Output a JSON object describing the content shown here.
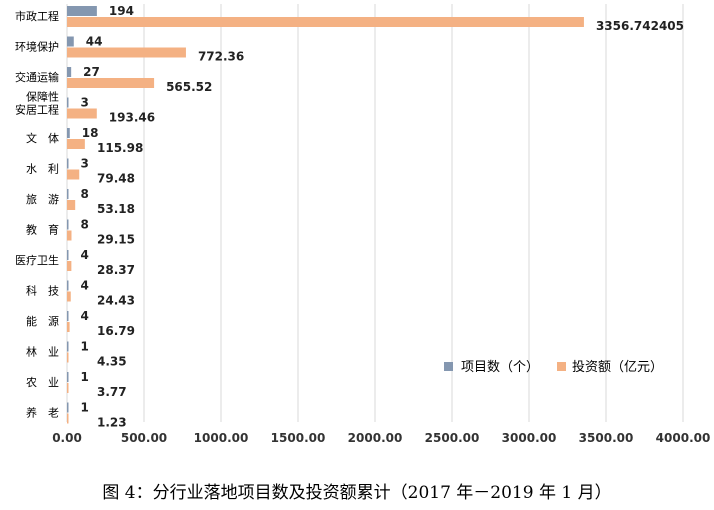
{
  "caption": "图 4：分行业落地项目数及投资额累计（2017 年－2019 年 1 月）",
  "colors": {
    "count": "#8497b0",
    "investment": "#f4b183",
    "grid": "#d9d9d9"
  },
  "chart_data": {
    "type": "bar",
    "orientation": "horizontal",
    "categories": [
      "市政工程",
      "环境保护",
      "交通运输",
      "保障性安居工程",
      "文 体",
      "水 利",
      "旅 游",
      "教 育",
      "医疗卫生",
      "科 技",
      "能 源",
      "林 业",
      "农 业",
      "养 老"
    ],
    "category_lines": [
      [
        "市政工程"
      ],
      [
        "环境保护"
      ],
      [
        "交通运输"
      ],
      [
        "保障性",
        "安居工程"
      ],
      [
        "文　体"
      ],
      [
        "水　利"
      ],
      [
        "旅　游"
      ],
      [
        "教　育"
      ],
      [
        "医疗卫生"
      ],
      [
        "科　技"
      ],
      [
        "能　源"
      ],
      [
        "林　业"
      ],
      [
        "农　业"
      ],
      [
        "养　老"
      ]
    ],
    "series": [
      {
        "name": "项目数（个）",
        "values": [
          194,
          44,
          27,
          3,
          18,
          3,
          8,
          8,
          4,
          4,
          4,
          1,
          1,
          1
        ],
        "labels": [
          "194",
          "44",
          "27",
          "3",
          "18",
          "3",
          "8",
          "8",
          "4",
          "4",
          "4",
          "1",
          "1",
          "1"
        ]
      },
      {
        "name": "投资额（亿元）",
        "values": [
          3356.742405,
          772.36,
          565.52,
          193.46,
          115.98,
          79.48,
          53.18,
          29.15,
          28.37,
          24.43,
          16.79,
          4.35,
          3.77,
          1.23
        ],
        "labels": [
          "3356.742405",
          "772.36",
          "565.52",
          "193.46",
          "115.98",
          "79.48",
          "53.18",
          "29.15",
          "28.37",
          "24.43",
          "16.79",
          "4.35",
          "3.77",
          "1.23"
        ]
      }
    ],
    "xlim": [
      0,
      4000
    ],
    "xticks": [
      "0.00",
      "500.00",
      "1000.00",
      "1500.00",
      "2000.00",
      "2500.00",
      "3000.00",
      "3500.00",
      "4000.00"
    ],
    "grid": true,
    "legend": "bottom-right"
  }
}
